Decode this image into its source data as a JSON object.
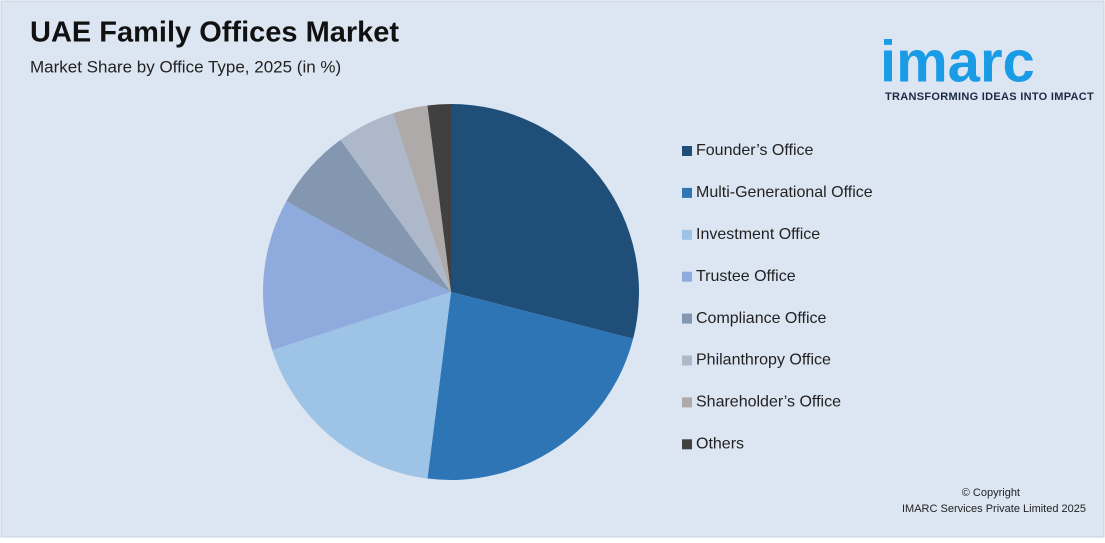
{
  "chart_data": {
    "type": "pie",
    "title": "UAE Family Offices Market",
    "subtitle": "Market Share by Office Type, 2025 (in %)",
    "categories": [
      "Founder’s Office",
      "Multi-Generational Office",
      "Investment Office",
      "Trustee Office",
      "Compliance Office",
      "Philanthropy Office",
      "Shareholder’s Office",
      "Others"
    ],
    "values": [
      29,
      23,
      18,
      13,
      7,
      5,
      3,
      2
    ],
    "colors": [
      "#1f4e79",
      "#2e75b6",
      "#9dc3e6",
      "#8faadc",
      "#8497b0",
      "#adb9ca",
      "#aeaaaa",
      "#404040"
    ],
    "legend": "right"
  },
  "logo": {
    "text": "imarc",
    "tagline": "TRANSFORMING IDEAS INTO IMPACT"
  },
  "footer": {
    "copyright": "© Copyright",
    "owner": "IMARC Services Private Limited 2025"
  }
}
